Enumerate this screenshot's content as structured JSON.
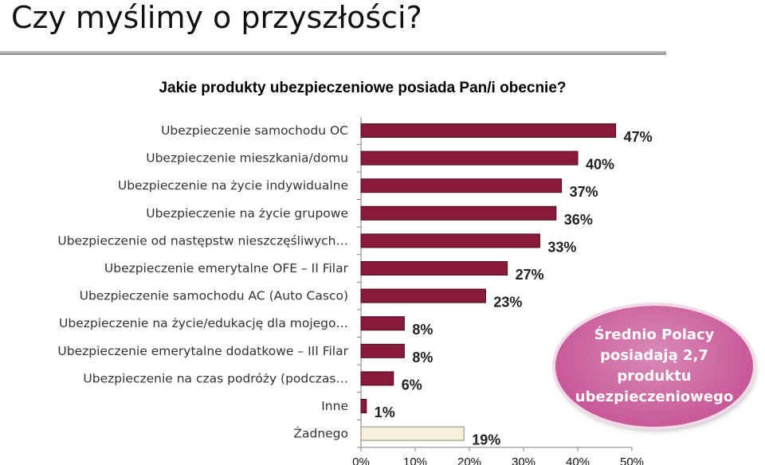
{
  "page": {
    "title": "Czy myślimy o przyszłości?",
    "question": "Jakie produkty ubezpieczeniowe posiada Pan/i obecnie?",
    "callout": "Średnio Polacy posiadają 2,7 produktu ubezpieczeniowego"
  },
  "colors": {
    "bar": "#8a1a3a",
    "bar_highlight": "#f7f0dc",
    "callout": "#c85a98"
  },
  "chart_data": {
    "type": "bar",
    "orientation": "horizontal",
    "categories": [
      "Ubezpieczenie samochodu OC",
      "Ubezpieczenie mieszkania/domu",
      "Ubezpieczenie na życie indywidualne",
      "Ubezpieczenie na życie grupowe",
      "Ubezpieczenie od następstw nieszczęśliwych…",
      "Ubezpieczenie emerytalne OFE – II Filar",
      "Ubezpieczenie samochodu AC (Auto Casco)",
      "Ubezpieczenie na życie/edukację dla mojego…",
      "Ubezpieczenie emerytalne dodatkowe – III Filar",
      "Ubezpieczenie na czas podróży (podczas…",
      "Inne",
      "Żadnego"
    ],
    "values": [
      47,
      40,
      37,
      36,
      33,
      27,
      23,
      8,
      8,
      6,
      1,
      19
    ],
    "value_labels": [
      "47%",
      "40%",
      "37%",
      "36%",
      "33%",
      "27%",
      "23%",
      "8%",
      "8%",
      "6%",
      "1%",
      "19%"
    ],
    "highlight_index": 11,
    "x_ticks": [
      0,
      10,
      20,
      30,
      40,
      50
    ],
    "x_tick_labels": [
      "0%",
      "10%",
      "20%",
      "30%",
      "40%",
      "50%"
    ],
    "xlim": [
      0,
      50
    ],
    "grid": false,
    "legend": "none"
  }
}
